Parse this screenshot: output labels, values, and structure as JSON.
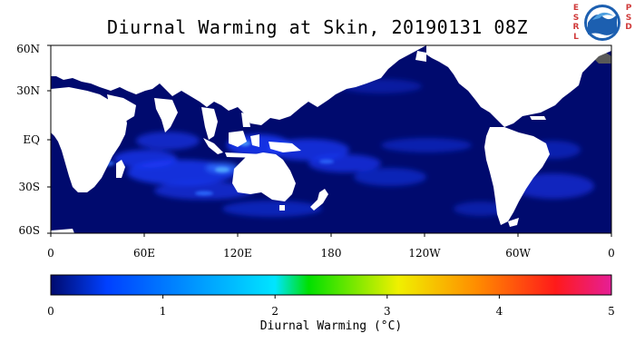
{
  "map": {
    "title": "Diurnal Warming at Skin, 20190131 08Z",
    "lat_labels": [
      "60N",
      "30N",
      "EQ",
      "30S",
      "60S"
    ],
    "lon_labels": [
      "0",
      "60E",
      "120E",
      "180",
      "120W",
      "60W",
      "0"
    ],
    "colors": {
      "ocean_base": "#000a6e",
      "land": "#ffffff",
      "ice": "#595959",
      "warm_blue": "#1b3cff",
      "warm_mid": "#2f6dff",
      "warm_cyan": "#58b8ff"
    }
  },
  "colorbar": {
    "ticks": [
      "0",
      "1",
      "2",
      "3",
      "4",
      "5"
    ],
    "title": "Diurnal Warming (°C)",
    "range": [
      0,
      5
    ],
    "stops": [
      "#000a6e",
      "#0040ff",
      "#00e5ff",
      "#00e000",
      "#f0f000",
      "#ff8c00",
      "#ff1a1a",
      "#e61e96"
    ]
  },
  "logos": {
    "esrl_letters": "ESRL",
    "psd_letters": "PSD",
    "seal_text": "NOAA"
  }
}
